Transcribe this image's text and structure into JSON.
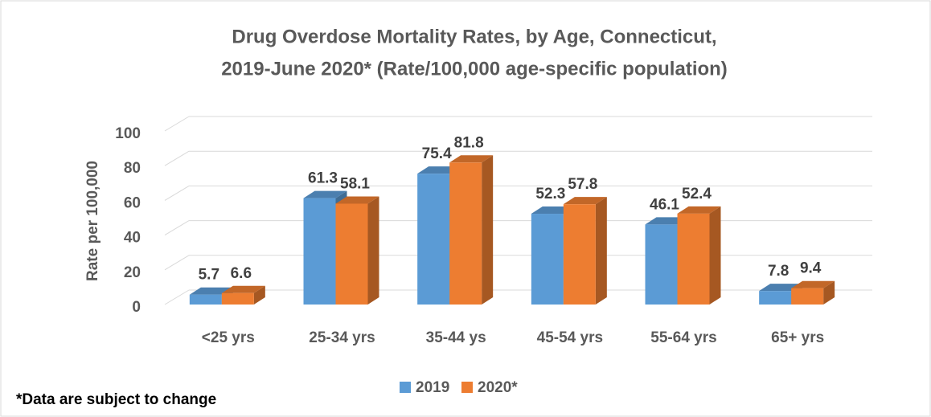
{
  "chart_data": {
    "type": "bar3d",
    "title": [
      "Drug Overdose Mortality Rates, by Age, Connecticut,",
      "2019-June 2020* (Rate/100,000  age-specific population)"
    ],
    "y_label": "Rate per 100,000",
    "categories": [
      "<25 yrs",
      "25-34 yrs",
      "35-44 ys",
      "45-54 yrs",
      "55-64 yrs",
      "65+ yrs"
    ],
    "series": [
      {
        "name": "2019",
        "color": "#5b9bd5",
        "values": [
          5.7,
          61.3,
          75.4,
          52.3,
          46.1,
          7.8
        ]
      },
      {
        "name": "2020*",
        "color": "#ed7d31",
        "values": [
          6.6,
          58.1,
          81.8,
          57.8,
          52.4,
          9.4
        ]
      }
    ],
    "ylim": [
      0,
      100
    ],
    "yticks": [
      0,
      20,
      40,
      60,
      80,
      100
    ],
    "grid": true,
    "legend": "bottom",
    "note": "*Data are subject to change"
  }
}
